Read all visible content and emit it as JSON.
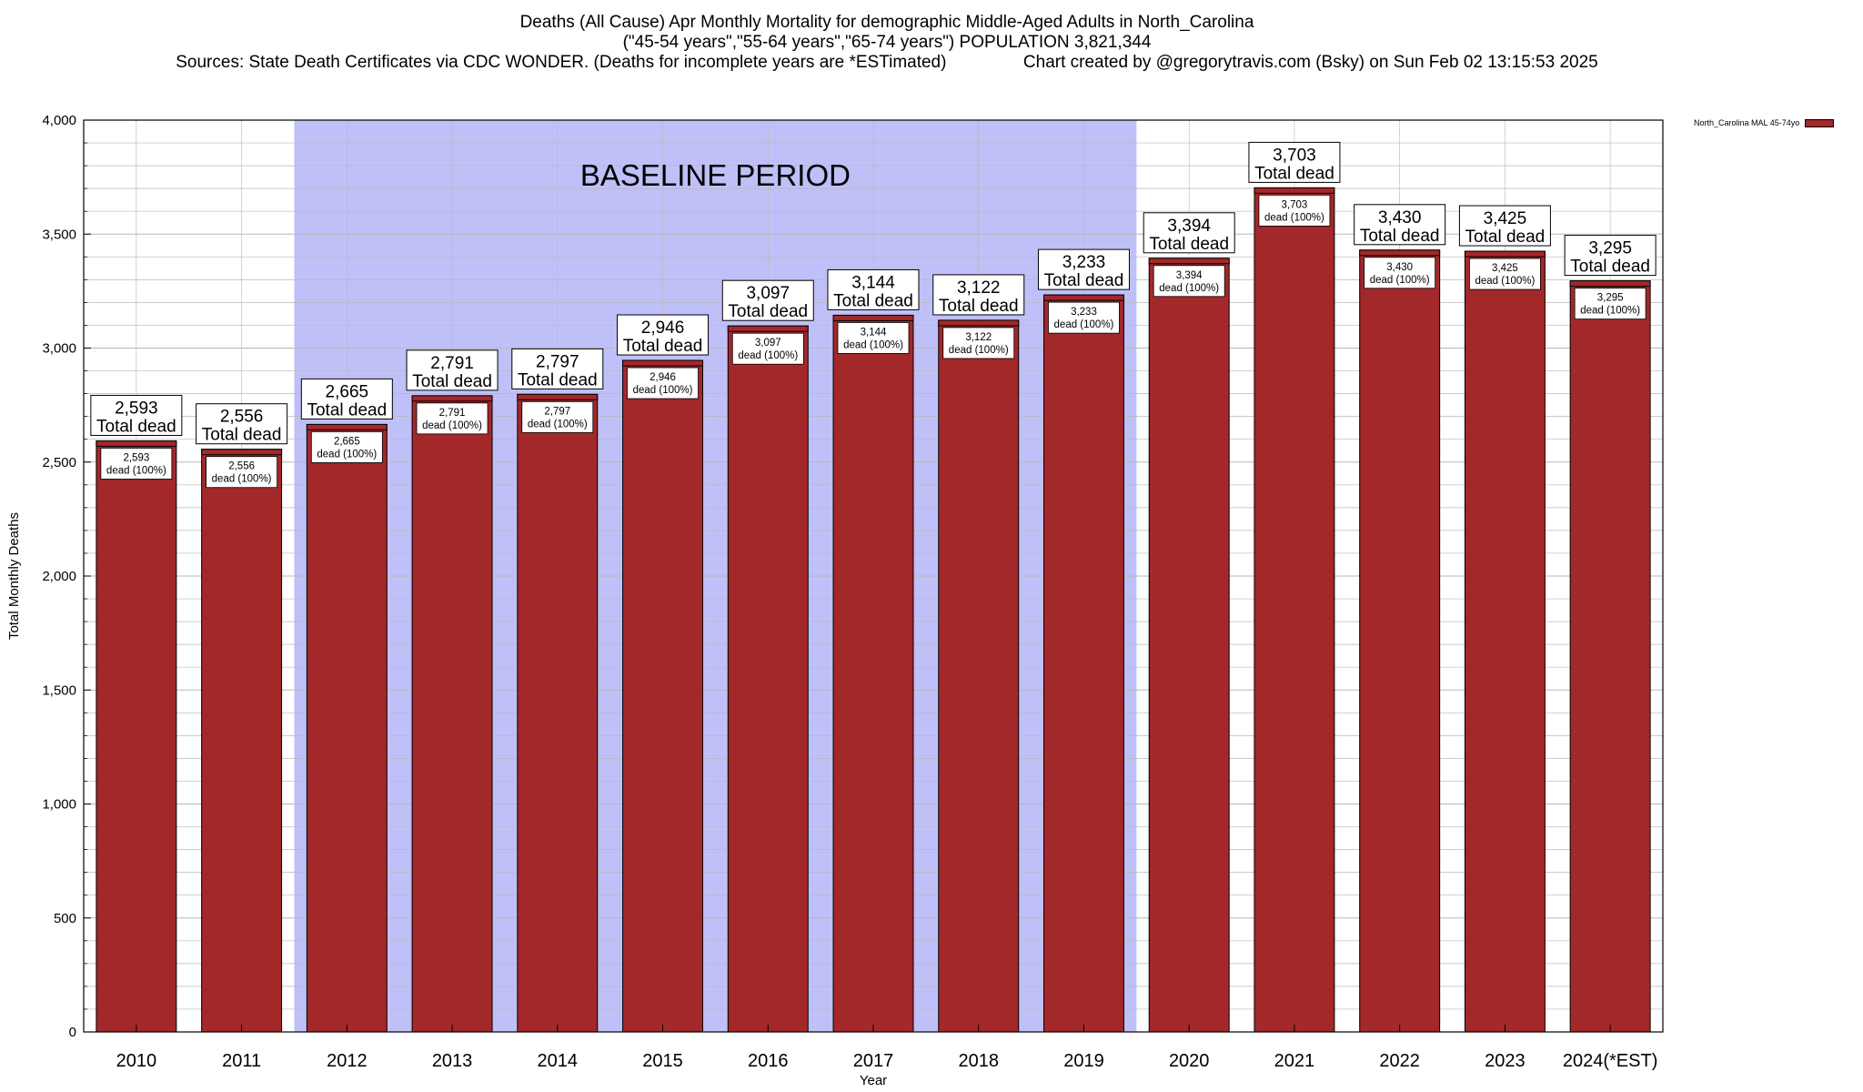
{
  "colors": {
    "bar": "#a3282a",
    "bar_cap": "#a3282a",
    "baseline_band": "#c0c0f8",
    "grid": "#b8b8b8"
  },
  "chart_data": {
    "type": "bar",
    "title_lines": [
      "Deaths (All Cause) Apr Monthly Mortality for demographic Middle-Aged Adults in North_Carolina",
      "(\"45-54 years\",\"55-64 years\",\"65-74 years\") POPULATION 3,821,344",
      "Sources: State Death Certificates via CDC WONDER. (Deaths for incomplete years are *ESTimated)                Chart created by @gregorytravis.com (Bsky) on Sun Feb 02 13:15:53 2025"
    ],
    "xlabel": "Year",
    "ylabel": "Total Monthly Deaths",
    "ylim": [
      0,
      4000
    ],
    "y_ticks": [
      0,
      500,
      1000,
      1500,
      2000,
      2500,
      3000,
      3500,
      4000
    ],
    "y_tick_labels": [
      "0",
      "500",
      "1,000",
      "1,500",
      "2,000",
      "2,500",
      "3,000",
      "3,500",
      "4,000"
    ],
    "categories": [
      "2010",
      "2011",
      "2012",
      "2013",
      "2014",
      "2015",
      "2016",
      "2017",
      "2018",
      "2019",
      "2020",
      "2021",
      "2022",
      "2023",
      "2024(*EST)"
    ],
    "series": [
      {
        "name": "North_Carolina MAL 45-74yo",
        "values": [
          2593,
          2556,
          2665,
          2791,
          2797,
          2946,
          3097,
          3144,
          3122,
          3233,
          3394,
          3703,
          3430,
          3425,
          3295
        ]
      }
    ],
    "top_labels": [
      "2,593",
      "2,556",
      "2,665",
      "2,791",
      "2,797",
      "2,946",
      "3,097",
      "3,144",
      "3,122",
      "3,233",
      "3,394",
      "3,703",
      "3,430",
      "3,425",
      "3,295"
    ],
    "top_label_suffix": "Total dead",
    "inner_label_suffix": "dead (100%)",
    "annotation": {
      "text": "BASELINE PERIOD",
      "from_category": "2012",
      "to_category": "2019"
    },
    "grid": true,
    "legend_position": "top-right"
  }
}
